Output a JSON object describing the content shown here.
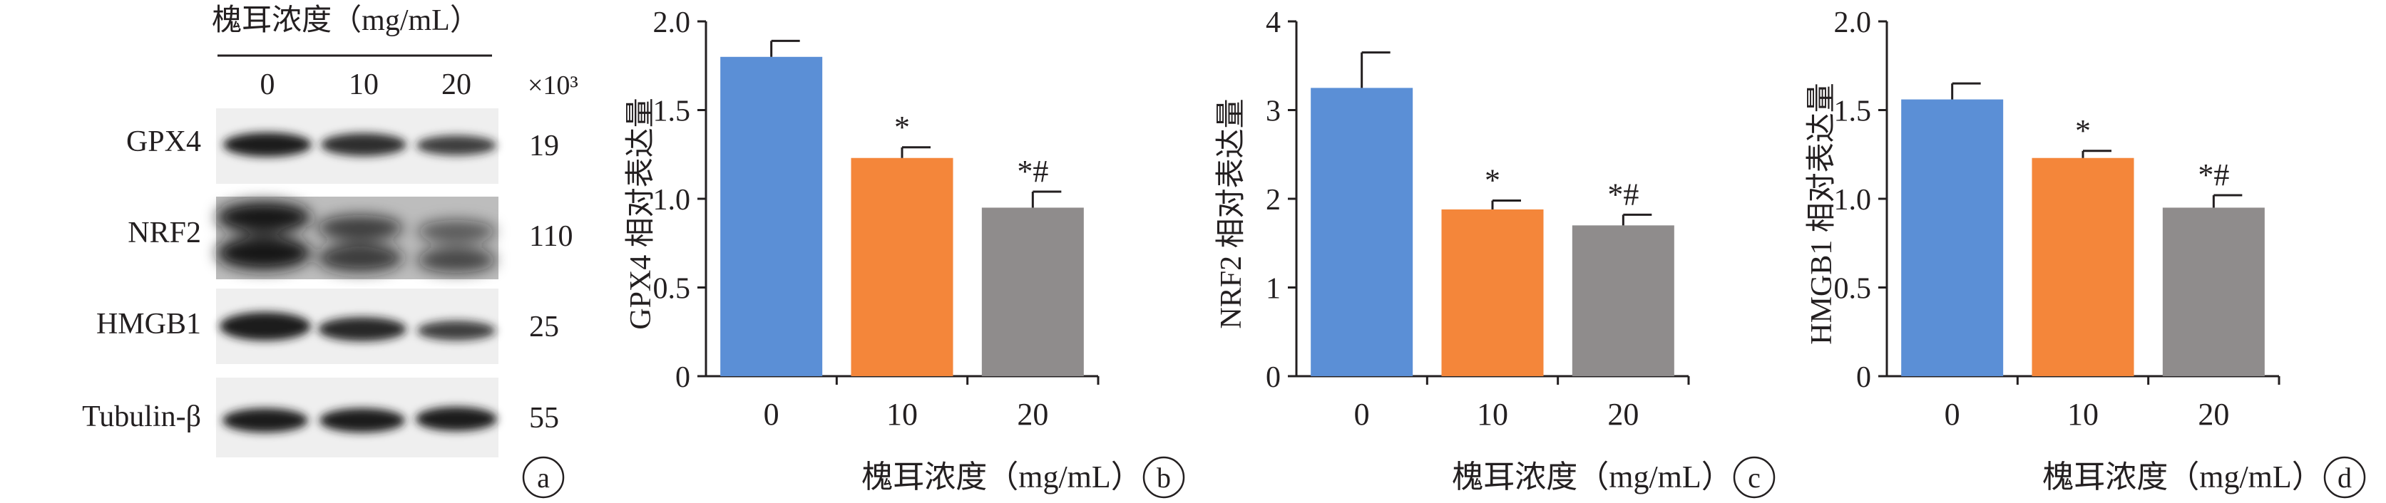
{
  "colors": {
    "bar_0": "#5b8fd6",
    "bar_10": "#f4863a",
    "bar_20": "#8f8c8c",
    "axis": "#231f20"
  },
  "western_blot": {
    "header": "槐耳浓度（mg/mL）",
    "lanes": [
      "0",
      "10",
      "20"
    ],
    "mw_unit": "×10³",
    "proteins": [
      "GPX4",
      "NRF2",
      "HMGB1",
      "Tubulin-β"
    ],
    "mw": [
      "19",
      "110",
      "25",
      "55"
    ],
    "panel_label": "a"
  },
  "chart_data": [
    {
      "type": "bar",
      "panel_label": "b",
      "categories": [
        "0",
        "10",
        "20"
      ],
      "values": [
        1.8,
        1.23,
        0.95
      ],
      "errors": [
        0.09,
        0.06,
        0.09
      ],
      "annotations": [
        "",
        "*",
        "*#"
      ],
      "xlabel": "槐耳浓度（mg/mL）",
      "ylabel": "GPX4 相对表达量",
      "ylim": [
        0,
        2.0
      ],
      "yticks": [
        "0",
        "0.5",
        "1.0",
        "1.5",
        "2.0"
      ],
      "ytick_values": [
        0,
        0.5,
        1.0,
        1.5,
        2.0
      ]
    },
    {
      "type": "bar",
      "panel_label": "c",
      "categories": [
        "0",
        "10",
        "20"
      ],
      "values": [
        3.25,
        1.88,
        1.7
      ],
      "errors": [
        0.4,
        0.1,
        0.12
      ],
      "annotations": [
        "",
        "*",
        "*#"
      ],
      "xlabel": "槐耳浓度（mg/mL）",
      "ylabel": "NRF2 相对表达量",
      "ylim": [
        0,
        4
      ],
      "yticks": [
        "0",
        "1",
        "2",
        "3",
        "4"
      ],
      "ytick_values": [
        0,
        1,
        2,
        3,
        4
      ]
    },
    {
      "type": "bar",
      "panel_label": "d",
      "categories": [
        "0",
        "10",
        "20"
      ],
      "values": [
        1.56,
        1.23,
        0.95
      ],
      "errors": [
        0.09,
        0.04,
        0.07
      ],
      "annotations": [
        "",
        "*",
        "*#"
      ],
      "xlabel": "槐耳浓度（mg/mL）",
      "ylabel": "HMGB1 相对表达量",
      "ylim": [
        0,
        2.0
      ],
      "yticks": [
        "0",
        "0.5",
        "1.0",
        "1.5",
        "2.0"
      ],
      "ytick_values": [
        0,
        0.5,
        1.0,
        1.5,
        2.0
      ]
    }
  ]
}
